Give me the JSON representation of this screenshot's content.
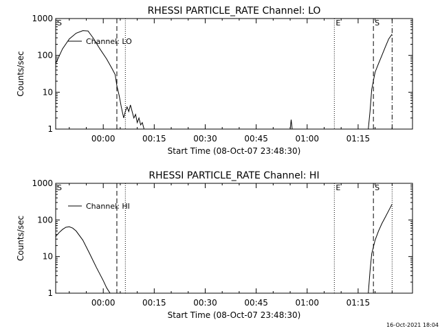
{
  "footer_timestamp": "16-Oct-2021 18:04",
  "chart_data": [
    {
      "type": "line",
      "title": "RHESSI PARTICLE_RATE Channel: LO",
      "xlabel": "Start Time (08-Oct-07 23:48:30)",
      "ylabel": "Counts/sec",
      "yscale": "log",
      "ylim": [
        1,
        1000
      ],
      "xlim_minutes": [
        -14,
        91
      ],
      "x_tick_labels": [
        "00:00",
        "00:15",
        "00:30",
        "00:45",
        "01:00",
        "01:15"
      ],
      "x_tick_minutes": [
        0,
        15,
        30,
        45,
        60,
        75
      ],
      "y_tick_labels": [
        "1",
        "10",
        "100",
        "1000"
      ],
      "y_tick_values": [
        1,
        10,
        100,
        1000
      ],
      "legend": "Channel: LO",
      "legend_position": "top-left",
      "markers": [
        {
          "label": "S",
          "minute": -14,
          "style": "dashed"
        },
        {
          "label": "",
          "minute": 4,
          "style": "dashed"
        },
        {
          "label": "",
          "minute": 6.5,
          "style": "dotted"
        },
        {
          "label": "E",
          "minute": 68,
          "style": "dotted"
        },
        {
          "label": "S",
          "minute": 79.5,
          "style": "dashed"
        },
        {
          "label": "",
          "minute": 85,
          "style": "dashdot"
        }
      ],
      "series": [
        {
          "name": "Channel: LO",
          "x": [
            -14,
            -12,
            -10,
            -8,
            -6,
            -4.5,
            -3,
            -1,
            1,
            2.5,
            3.5,
            4,
            4.7,
            5.3,
            6,
            6.5,
            7,
            7.5,
            8,
            8.5,
            9,
            9.5,
            10,
            10.5,
            11,
            11.5,
            12
          ],
          "y": [
            60,
            150,
            280,
            400,
            470,
            460,
            300,
            150,
            80,
            45,
            30,
            15,
            8,
            4,
            2,
            3,
            4,
            3,
            4.5,
            3,
            2,
            2.5,
            1.5,
            2,
            1.3,
            1.5,
            1
          ]
        },
        {
          "name": "",
          "x": [
            55,
            55.3,
            55.6
          ],
          "y": [
            1,
            1.8,
            1
          ]
        },
        {
          "name": "",
          "x": [
            78,
            78.5,
            79,
            80,
            81,
            82,
            83,
            84,
            85
          ],
          "y": [
            1,
            3,
            12,
            35,
            60,
            100,
            170,
            280,
            380
          ]
        }
      ]
    },
    {
      "type": "line",
      "title": "RHESSI PARTICLE_RATE Channel: HI",
      "xlabel": "Start Time (08-Oct-07 23:48:30)",
      "ylabel": "Counts/sec",
      "yscale": "log",
      "ylim": [
        1,
        1000
      ],
      "xlim_minutes": [
        -14,
        91
      ],
      "x_tick_labels": [
        "00:00",
        "00:15",
        "00:30",
        "00:45",
        "01:00",
        "01:15"
      ],
      "x_tick_minutes": [
        0,
        15,
        30,
        45,
        60,
        75
      ],
      "y_tick_labels": [
        "1",
        "10",
        "100",
        "1000"
      ],
      "y_tick_values": [
        1,
        10,
        100,
        1000
      ],
      "legend": "Channel: HI",
      "legend_position": "top-left",
      "markers": [
        {
          "label": "S",
          "minute": -14,
          "style": "dashed"
        },
        {
          "label": "",
          "minute": 4,
          "style": "dashed"
        },
        {
          "label": "",
          "minute": 6.5,
          "style": "dotted"
        },
        {
          "label": "E",
          "minute": 68,
          "style": "dotted"
        },
        {
          "label": "S",
          "minute": 79.5,
          "style": "dashed"
        },
        {
          "label": "",
          "minute": 85,
          "style": "dotted"
        }
      ],
      "series": [
        {
          "name": "Channel: HI",
          "x": [
            -14,
            -13,
            -12,
            -11,
            -10,
            -9,
            -8,
            -6,
            -4,
            -2,
            0,
            1,
            2
          ],
          "y": [
            35,
            45,
            55,
            63,
            65,
            60,
            50,
            28,
            12,
            5,
            2.2,
            1.4,
            1
          ]
        },
        {
          "name": "",
          "x": [
            78,
            78.5,
            79,
            80,
            81,
            82,
            83,
            84,
            85
          ],
          "y": [
            1,
            4,
            12,
            28,
            50,
            80,
            120,
            180,
            270
          ]
        }
      ]
    }
  ]
}
